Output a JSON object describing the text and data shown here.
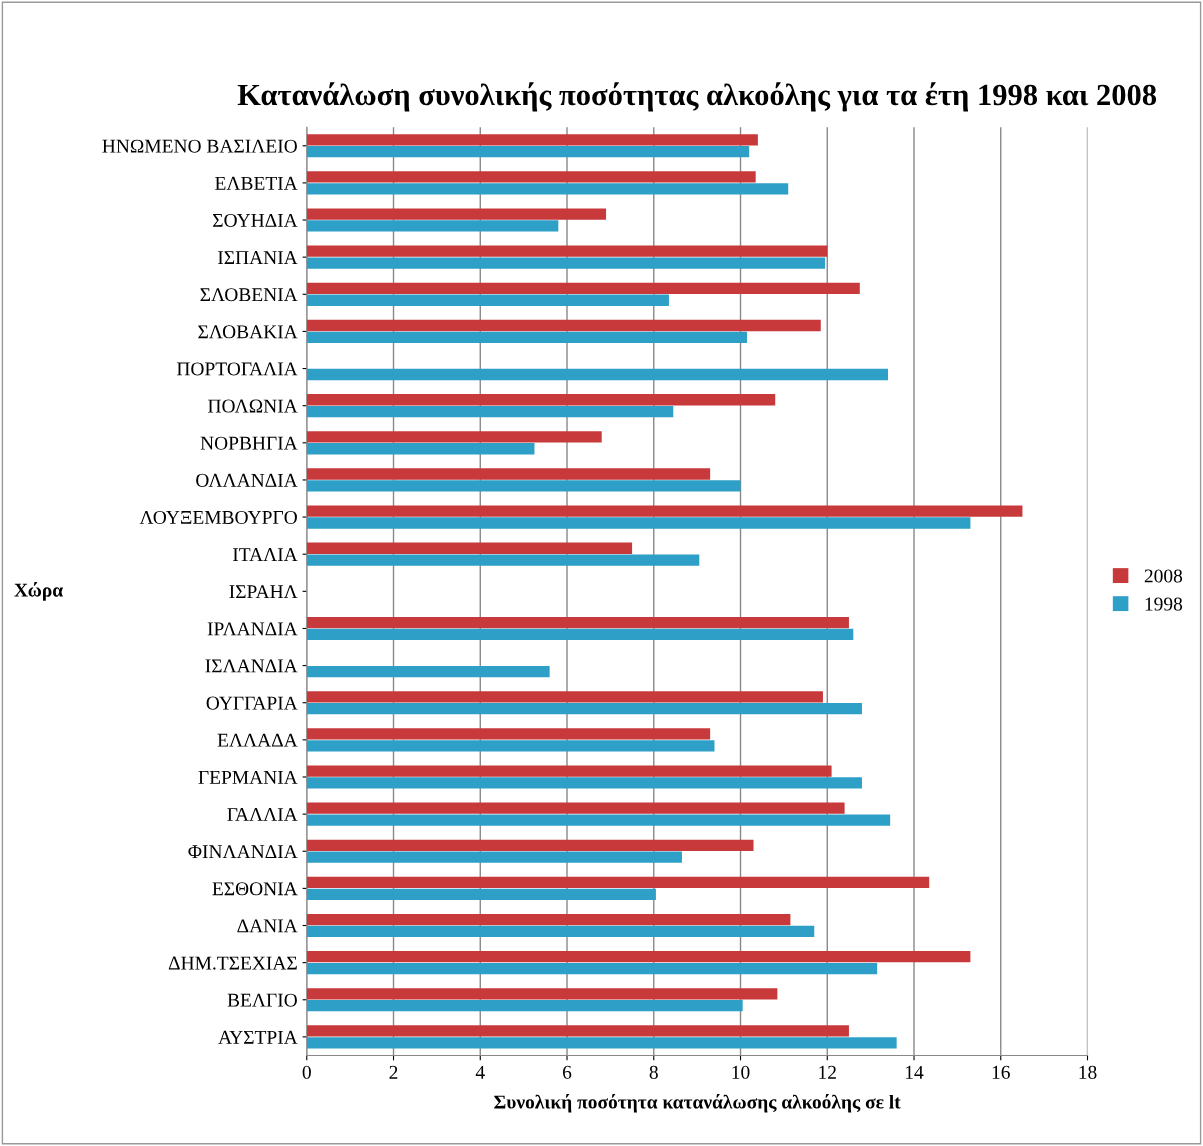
{
  "chart_data": {
    "type": "bar",
    "orientation": "horizontal",
    "title": "Κατανάλωση συνολικής ποσότητας αλκοόλης για τα έτη 1998 και 2008",
    "xlabel": "Συνολική ποσότητα κατανάλωσης αλκοόλης σε lt",
    "ylabel": "Χώρα",
    "categories": [
      "ΗΝΩΜΕΝΟ ΒΑΣΙΛΕΙΟ",
      "ΕΛΒΕΤΙΑ",
      "ΣΟΥΗΔΙΑ",
      "ΙΣΠΑΝΙΑ",
      "ΣΛΟΒΕΝΙΑ",
      "ΣΛΟΒΑΚΙΑ",
      "ΠΟΡΤΟΓΑΛΙΑ",
      "ΠΟΛΩΝΙΑ",
      "ΝΟΡΒΗΓΙΑ",
      "ΟΛΛΑΝΔΙΑ",
      "ΛΟΥΞΕΜΒΟΥΡΓΟ",
      "ΙΤΑΛΙΑ",
      "ΙΣΡΑΗΛ",
      "ΙΡΛΑΝΔΙΑ",
      "ΙΣΛΑΝΔΙΑ",
      "ΟΥΓΓΑΡΙΑ",
      "ΕΛΛΑΔΑ",
      "ΓΕΡΜΑΝΙΑ",
      "ΓΑΛΛΙΑ",
      "ΦΙΝΛΑΝΔΙΑ",
      "ΕΣΘΟΝΙΑ",
      "ΔΑΝΙΑ",
      "ΔΗΜ.ΤΣΕΧΙΑΣ",
      "ΒΕΛΓΙΟ",
      "ΑΥΣΤΡΙΑ"
    ],
    "series": [
      {
        "name": "2008",
        "color": "#c8393b",
        "values": [
          10.4,
          10.35,
          6.9,
          12.0,
          12.75,
          11.85,
          null,
          10.8,
          6.8,
          9.3,
          16.5,
          7.5,
          null,
          12.5,
          null,
          11.9,
          9.3,
          12.1,
          12.4,
          10.3,
          14.35,
          11.15,
          15.3,
          10.85,
          12.5
        ]
      },
      {
        "name": "1998",
        "color": "#2e9fc6",
        "values": [
          10.2,
          11.1,
          5.8,
          11.95,
          8.35,
          10.15,
          13.4,
          8.45,
          5.25,
          10.0,
          15.3,
          9.05,
          null,
          12.6,
          5.6,
          12.8,
          9.4,
          12.8,
          13.45,
          8.65,
          8.05,
          11.7,
          13.15,
          10.05,
          13.6
        ]
      }
    ],
    "xlim": [
      0,
      18
    ],
    "xticks": [
      0,
      2,
      4,
      6,
      8,
      10,
      12,
      14,
      16,
      18
    ],
    "grid": "x",
    "legend": "right"
  }
}
